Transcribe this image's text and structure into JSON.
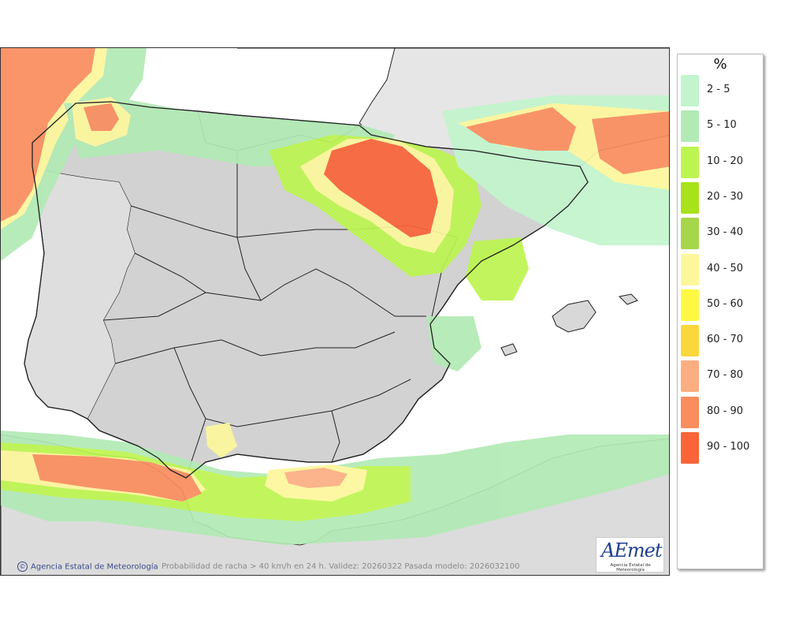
{
  "map": {
    "region": "Península Ibérica y Baleares",
    "sea_color": "#ffffff",
    "land_color": "#d8d8d8",
    "border_color": "#222222"
  },
  "legend": {
    "title": "%",
    "items": [
      {
        "label": "2 - 5",
        "color": "#c2f5cd"
      },
      {
        "label": "5 - 10",
        "color": "#b2eab5"
      },
      {
        "label": "10 - 20",
        "color": "#bdf550"
      },
      {
        "label": "20 - 30",
        "color": "#a8e21a"
      },
      {
        "label": "30 - 40",
        "color": "#a6d64a"
      },
      {
        "label": "40 - 50",
        "color": "#fdf79c"
      },
      {
        "label": "50 - 60",
        "color": "#fdf942"
      },
      {
        "label": "60 - 70",
        "color": "#fbd73c"
      },
      {
        "label": "70 - 80",
        "color": "#fbae82"
      },
      {
        "label": "80 - 90",
        "color": "#fa8d5e"
      },
      {
        "label": "90 - 100",
        "color": "#fa6438"
      }
    ]
  },
  "credit": {
    "icon": "copyright-icon",
    "text": "Agencia Estatal de Meteorología"
  },
  "caption": "Probabilidad de racha > 40 km/h en 24 h. Validez: 20260322 Pasada modelo: 2026032100",
  "logo": {
    "text": "AEmet",
    "subtitle": "Agencia Estatal de Meteorología"
  }
}
